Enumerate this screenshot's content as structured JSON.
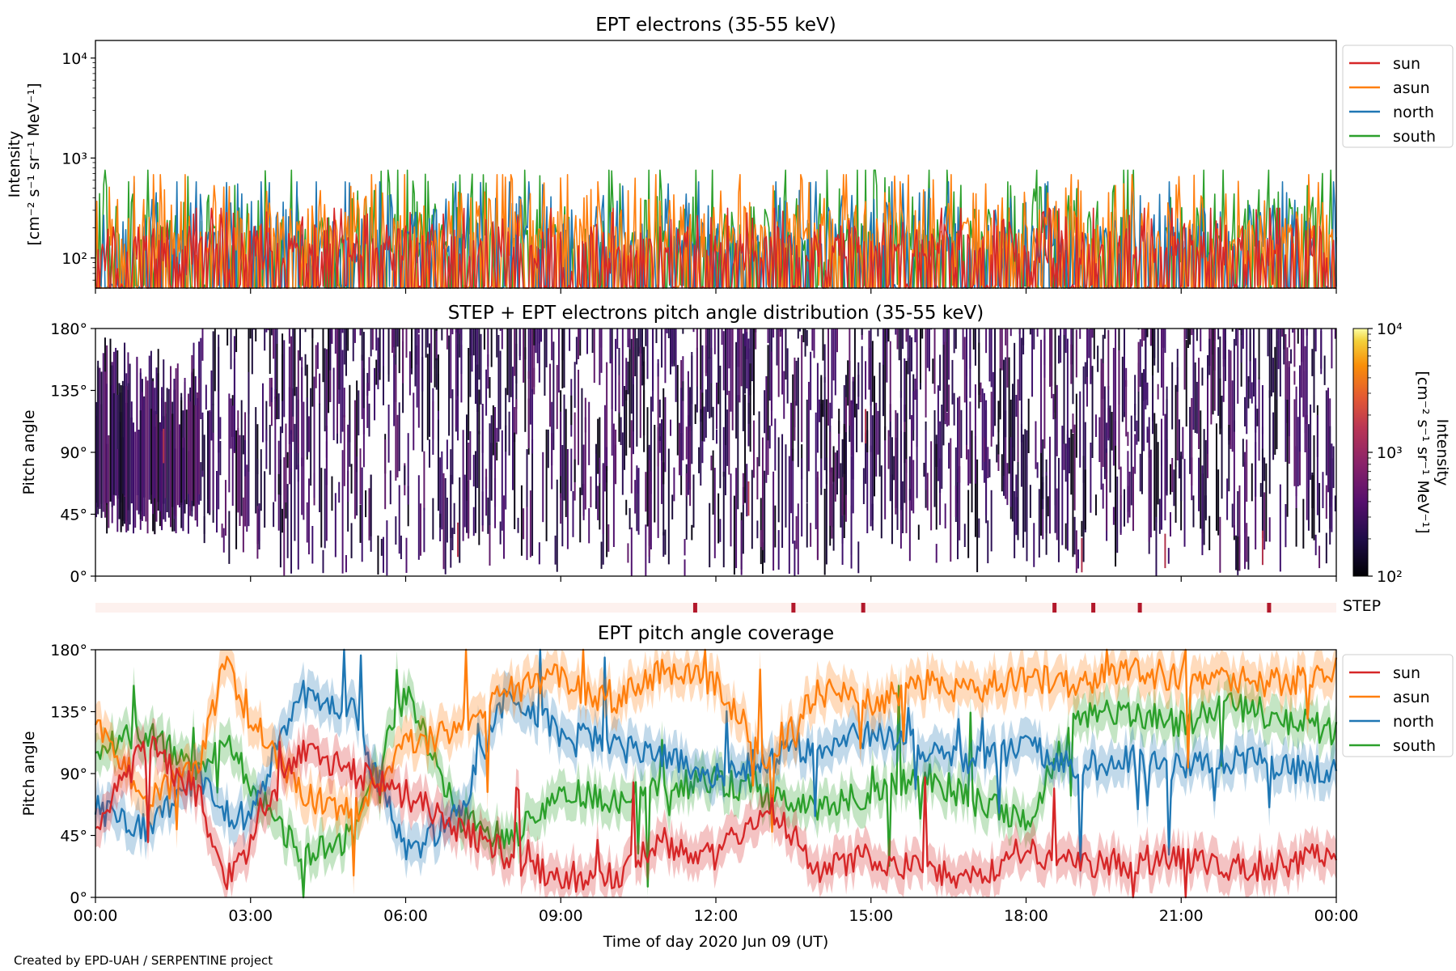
{
  "colors": {
    "sun": "#d62728",
    "asun": "#ff7f0e",
    "north": "#1f77b4",
    "south": "#2ca02c",
    "step_bar_bg": "#fdf1ee",
    "step_mark": "#b2182b"
  },
  "footer": "Created by EPD-UAH / SERPENTINE project",
  "chart_data": [
    {
      "type": "line",
      "title": "EPT electrons (35-55 keV)",
      "ylabel": [
        "Intensity",
        "[cm⁻² s⁻¹ sr⁻¹ MeV⁻¹]"
      ],
      "yscale": "log",
      "ylim": [
        50,
        15000
      ],
      "yticks": [
        "10⁴",
        "10³",
        "10²"
      ],
      "xlim_hours": [
        0,
        24
      ],
      "legend": {
        "placement": "outside-right",
        "entries": [
          "sun",
          "asun",
          "north",
          "south"
        ]
      },
      "series": [
        {
          "name": "sun",
          "baseline": 120,
          "typical_peak": 300
        },
        {
          "name": "asun",
          "baseline": 180,
          "typical_peak": 650
        },
        {
          "name": "north",
          "baseline": 150,
          "typical_peak": 550
        },
        {
          "name": "south",
          "baseline": 150,
          "typical_peak": 720
        }
      ]
    },
    {
      "type": "heatmap",
      "title": "STEP + EPT electrons pitch angle distribution (35-55 keV)",
      "ylabel": "Pitch angle",
      "yticks": [
        "180°",
        "135°",
        "90°",
        "45°",
        "0°"
      ],
      "ylim": [
        0,
        180
      ],
      "xlim_hours": [
        0,
        24
      ],
      "colorbar": {
        "scale": "log",
        "range": [
          100,
          10000
        ],
        "ticks": [
          "10⁴",
          "10³",
          "10²"
        ],
        "label": [
          "Intensity",
          "[cm⁻² s⁻¹ sr⁻¹ MeV⁻¹]"
        ]
      },
      "step_bar": {
        "label": "STEP",
        "marks_hours": [
          11.6,
          13.5,
          14.85,
          18.55,
          19.3,
          20.2,
          22.7
        ]
      }
    },
    {
      "type": "line",
      "title": "EPT pitch angle coverage",
      "ylabel": "Pitch angle",
      "xlabel": "Time of day 2020 Jun 09 (UT)",
      "ylim": [
        0,
        180
      ],
      "yticks": [
        "180°",
        "135°",
        "90°",
        "45°",
        "0°"
      ],
      "xticks": [
        "00:00",
        "03:00",
        "06:00",
        "09:00",
        "12:00",
        "15:00",
        "18:00",
        "21:00",
        "00:00"
      ],
      "xlim_hours": [
        0,
        24
      ],
      "legend": {
        "placement": "outside-right",
        "entries": [
          "sun",
          "asun",
          "north",
          "south"
        ]
      },
      "series": [
        {
          "name": "sun",
          "hours": [
            0,
            1,
            2,
            2.5,
            3,
            4,
            5,
            6,
            7,
            8,
            9,
            10,
            11,
            12,
            13,
            14,
            15,
            16,
            17,
            18,
            19,
            20,
            21,
            22,
            23,
            24
          ],
          "values": [
            55,
            110,
            75,
            10,
            40,
            110,
            90,
            75,
            50,
            30,
            15,
            15,
            40,
            30,
            70,
            20,
            30,
            20,
            15,
            35,
            25,
            25,
            30,
            20,
            25,
            35
          ]
        },
        {
          "name": "asun",
          "hours": [
            0,
            1,
            2,
            2.5,
            3,
            4,
            5,
            6,
            7,
            8,
            9,
            10,
            11,
            12,
            13,
            14,
            15,
            16,
            17,
            18,
            19,
            20,
            21,
            22,
            23,
            24
          ],
          "values": [
            130,
            70,
            95,
            170,
            130,
            75,
            60,
            110,
            120,
            150,
            160,
            140,
            165,
            155,
            100,
            150,
            140,
            155,
            150,
            160,
            155,
            165,
            160,
            160,
            155,
            165
          ]
        },
        {
          "name": "north",
          "hours": [
            0,
            1,
            2,
            2.5,
            3,
            4,
            5,
            6,
            7,
            8,
            9,
            10,
            11,
            12,
            13,
            14,
            15,
            16,
            17,
            18,
            19,
            20,
            21,
            22,
            23,
            24
          ],
          "values": [
            65,
            50,
            90,
            60,
            60,
            150,
            135,
            30,
            60,
            150,
            120,
            110,
            100,
            90,
            100,
            110,
            120,
            110,
            100,
            110,
            95,
            100,
            95,
            100,
            95,
            90
          ]
        },
        {
          "name": "south",
          "hours": [
            0,
            1,
            2,
            2.5,
            3,
            4,
            5,
            6,
            7,
            8,
            9,
            10,
            11,
            12,
            13,
            14,
            15,
            16,
            17,
            18,
            19,
            20,
            21,
            22,
            23,
            24
          ],
          "values": [
            110,
            120,
            90,
            120,
            80,
            30,
            45,
            150,
            60,
            40,
            80,
            70,
            80,
            85,
            75,
            65,
            75,
            90,
            70,
            55,
            130,
            135,
            125,
            140,
            130,
            120
          ]
        }
      ]
    }
  ]
}
